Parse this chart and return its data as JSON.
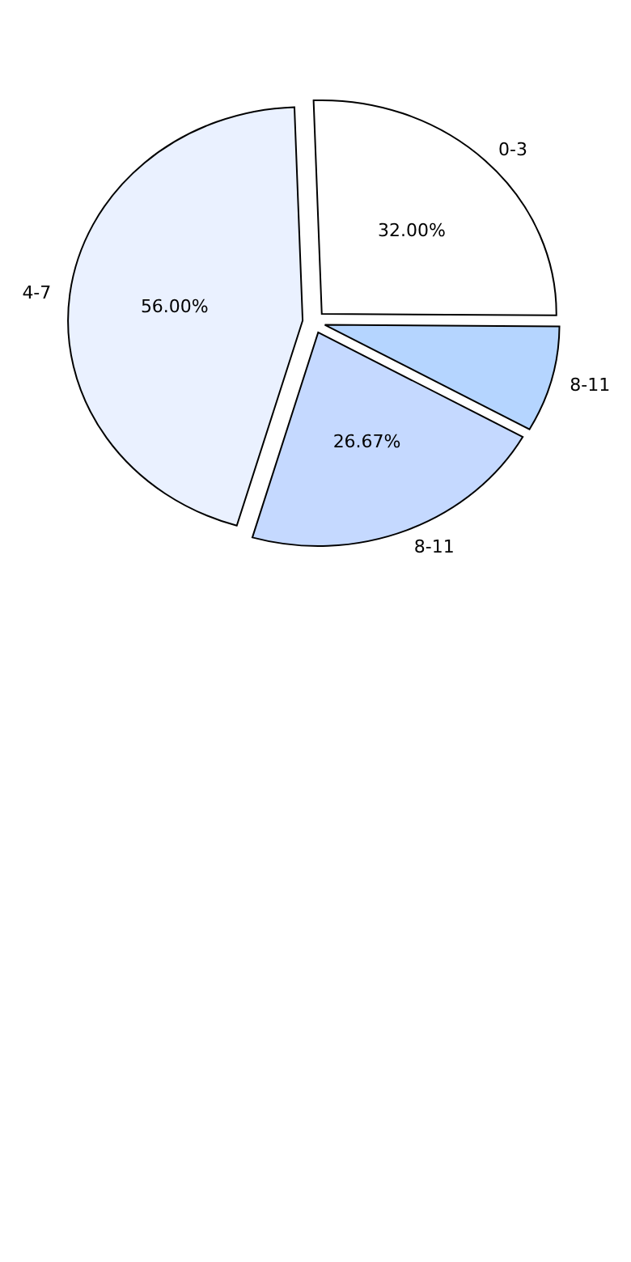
{
  "chart_data": {
    "type": "pie",
    "categories": [
      "0-3",
      "8-11",
      "8-11",
      "4-7"
    ],
    "values": [
      32,
      10,
      26.67,
      56
    ],
    "value_labels": [
      "32.00%",
      null,
      "26.67%",
      "56.00%"
    ],
    "colors": [
      "#ffffff",
      "#b5d5ff",
      "#c5d9ff",
      "#eaf1ff"
    ]
  }
}
